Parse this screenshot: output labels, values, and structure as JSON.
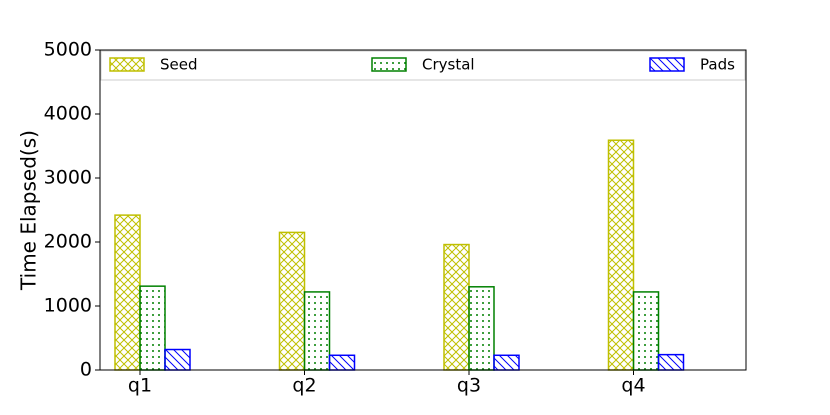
{
  "chart_data": {
    "type": "bar",
    "y_label": "Time Elapsed(s)",
    "categories": [
      "q1",
      "q2",
      "q3",
      "q4"
    ],
    "series": [
      {
        "name": "Seed",
        "color": "#bfbf00",
        "hatch": "cross",
        "values": [
          2420,
          2150,
          1960,
          3590
        ]
      },
      {
        "name": "Crystal",
        "color": "#008000",
        "hatch": "dots",
        "values": [
          1310,
          1220,
          1300,
          1220
        ]
      },
      {
        "name": "Pads",
        "color": "#0000ff",
        "hatch": "diagonal",
        "values": [
          320,
          230,
          230,
          240
        ]
      }
    ],
    "ylim": [
      0,
      5000
    ],
    "yticks": [
      0,
      1000,
      2000,
      3000,
      4000,
      5000
    ],
    "legend": "top"
  }
}
